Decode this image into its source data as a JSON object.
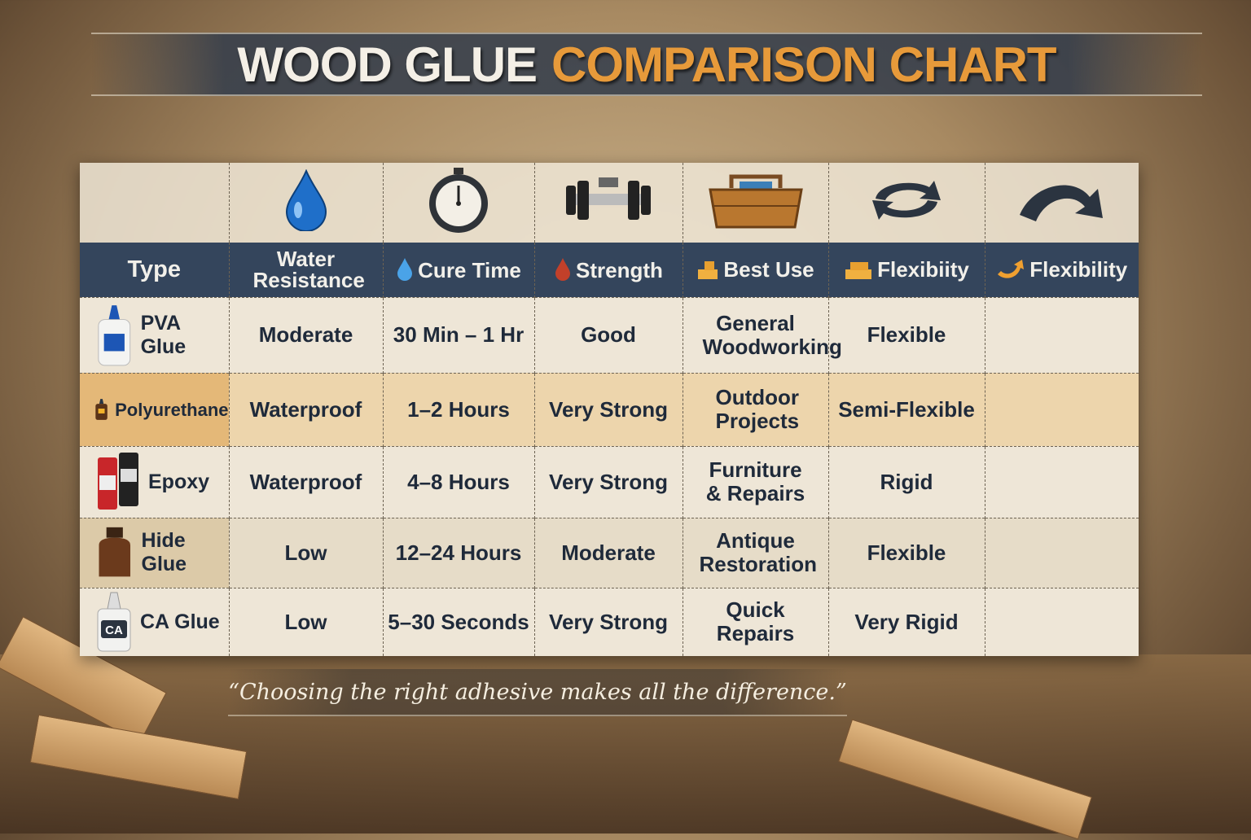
{
  "title": {
    "part1": "WOOD GLUE",
    "part2": "COMPARISON CHART"
  },
  "colors": {
    "header": "#34455c",
    "accent": "#e79a3a",
    "row_alt": "#edd5ac"
  },
  "icons": [
    "water-drop-icon",
    "stopwatch-icon",
    "dumbbell-icon",
    "toolbox-icon",
    "rotate-arrows-icon",
    "curved-arrow-icon"
  ],
  "chart_data": {
    "type": "table",
    "title": "WOOD GLUE COMPARISON CHART",
    "columns": [
      "Type",
      "Water Resistance",
      "Cure Time",
      "Strength",
      "Best Use",
      "Flexibiity",
      "Flexibility"
    ],
    "rows": [
      [
        "PVA Glue",
        "Moderate",
        "30 Min – 1 Hr",
        "Good",
        "General Woodworking",
        "Flexible",
        ""
      ],
      [
        "Polyurethane",
        "Waterproof",
        "1–2 Hours",
        "Very Strong",
        "Outdoor Projects",
        "Semi-Flexible",
        ""
      ],
      [
        "Epoxy",
        "Waterproof",
        "4–8 Hours",
        "Very Strong",
        "Furniture & Repairs",
        "Rigid",
        ""
      ],
      [
        "Hide Glue",
        "Low",
        "12–24 Hours",
        "Moderate",
        "Antique Restoration",
        "Flexible",
        ""
      ],
      [
        "CA Glue",
        "Low",
        "5–30 Seconds",
        "Very Strong",
        "Quick Repairs",
        "Very Rigid",
        ""
      ]
    ]
  },
  "ca_label": "CA",
  "quote": "“Choosing the right adhesive makes all the difference.”"
}
